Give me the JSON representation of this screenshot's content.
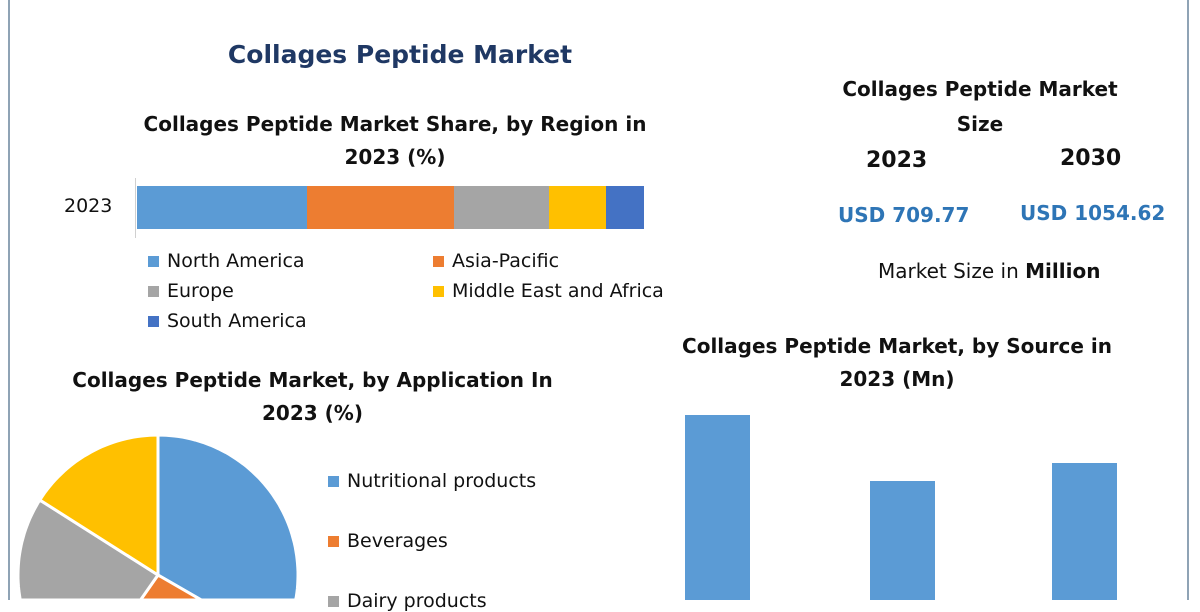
{
  "title": "Collages Peptide Market",
  "market_size": {
    "title": "Collages Peptide Market Size",
    "years": [
      "2023",
      "2030"
    ],
    "values": [
      "USD 709.77",
      "USD 1054.62"
    ],
    "note_prefix": "Market Size in",
    "note_unit": "Million"
  },
  "colors": {
    "blue": "#5b9bd5",
    "orange": "#ed7d31",
    "gray": "#a5a5a5",
    "yellow": "#ffc000",
    "darkblue": "#4472c4"
  },
  "chart_data": [
    {
      "type": "bar",
      "stacked": true,
      "orientation": "horizontal",
      "title": "Collages Peptide Market Share, by Region in 2023 (%)",
      "categories": [
        "2023"
      ],
      "series": [
        {
          "name": "North America",
          "values": [
            33.5
          ],
          "color": "#5b9bd5"
        },
        {
          "name": "Asia-Pacific",
          "values": [
            29.0
          ],
          "color": "#ed7d31"
        },
        {
          "name": "Europe",
          "values": [
            18.7
          ],
          "color": "#a5a5a5"
        },
        {
          "name": "Middle East and Africa",
          "values": [
            11.3
          ],
          "color": "#ffc000"
        },
        {
          "name": "South America",
          "values": [
            7.5
          ],
          "color": "#4472c4"
        }
      ]
    },
    {
      "type": "pie",
      "title": "Collages Peptide Market, by Application In 2023 (%)",
      "labels": [
        "Nutritional products",
        "Beverages",
        "Dairy products",
        ""
      ],
      "values": [
        45,
        7,
        32,
        16
      ],
      "colors": [
        "#5b9bd5",
        "#ed7d31",
        "#a5a5a5",
        "#ffc000"
      ]
    },
    {
      "type": "bar",
      "title": "Collages Peptide Market, by Source in 2023 (Mn)",
      "values": [
        245,
        179,
        197
      ],
      "color": "#5b9bd5"
    }
  ]
}
